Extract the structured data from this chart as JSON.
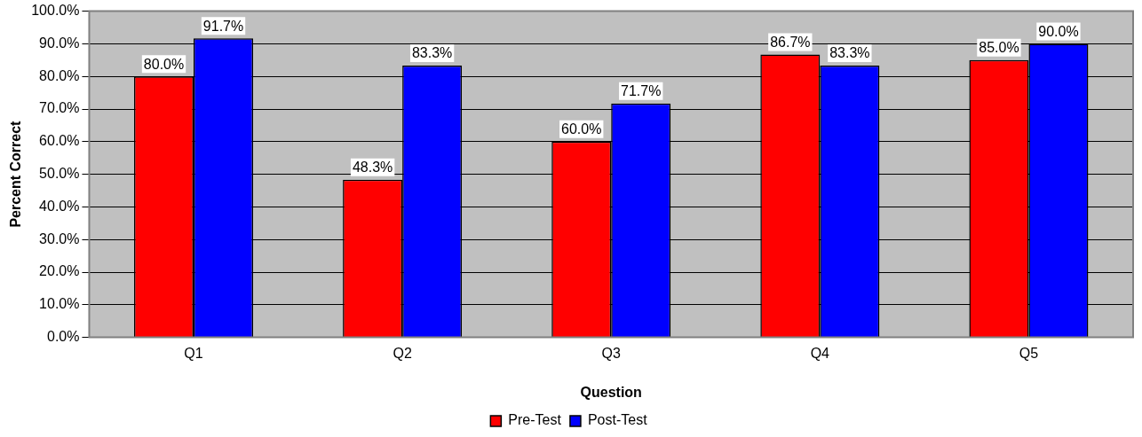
{
  "chart_data": {
    "type": "bar",
    "xlabel": "Question",
    "ylabel": "Percent Correct",
    "categories": [
      "Q1",
      "Q2",
      "Q3",
      "Q4",
      "Q5"
    ],
    "series": [
      {
        "name": "Pre-Test",
        "color": "#ff0000",
        "values": [
          80.0,
          48.3,
          60.0,
          86.7,
          85.0
        ],
        "value_labels": [
          "80.0%",
          "48.3%",
          "60.0%",
          "86.7%",
          "85.0%"
        ]
      },
      {
        "name": "Post-Test",
        "color": "#0000ff",
        "values": [
          91.7,
          83.3,
          71.7,
          83.3,
          90.0
        ],
        "value_labels": [
          "91.7%",
          "83.3%",
          "71.7%",
          "83.3%",
          "90.0%"
        ]
      }
    ],
    "ylim": [
      0,
      100
    ],
    "yticks": [
      {
        "value": 0,
        "label": "0.0%"
      },
      {
        "value": 10,
        "label": "10.0%"
      },
      {
        "value": 20,
        "label": "20.0%"
      },
      {
        "value": 30,
        "label": "30.0%"
      },
      {
        "value": 40,
        "label": "40.0%"
      },
      {
        "value": 50,
        "label": "50.0%"
      },
      {
        "value": 60,
        "label": "60.0%"
      },
      {
        "value": 70,
        "label": "70.0%"
      },
      {
        "value": 80,
        "label": "80.0%"
      },
      {
        "value": 90,
        "label": "90.0%"
      },
      {
        "value": 100,
        "label": "100.0%"
      }
    ],
    "grid": "y",
    "legend": "bottom"
  }
}
